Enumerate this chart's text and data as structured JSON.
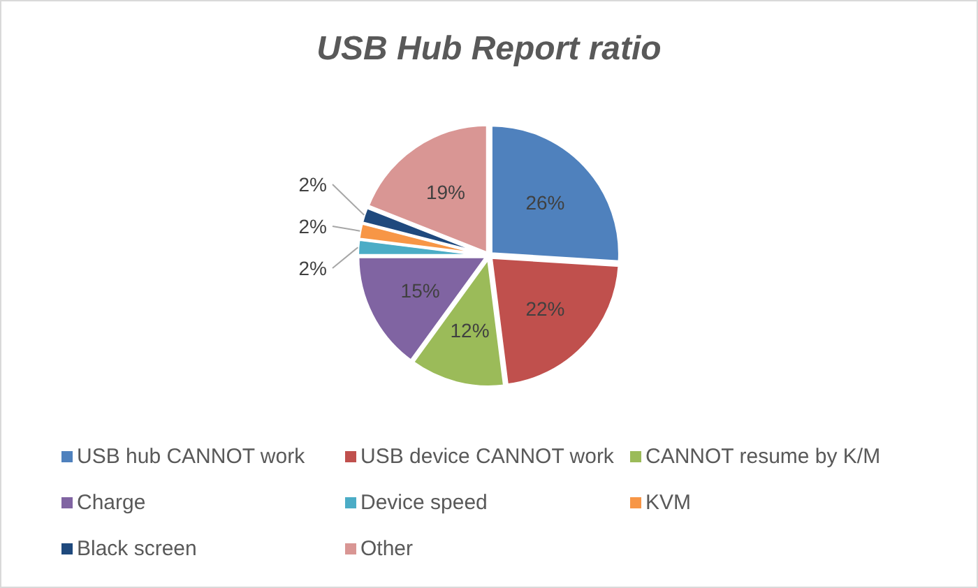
{
  "chart_data": {
    "type": "pie",
    "title": "USB Hub Report ratio",
    "categories": [
      "USB hub CANNOT work",
      "USB device CANNOT work",
      "CANNOT resume by K/M",
      "Charge",
      "Device speed",
      "KVM",
      "Black screen",
      "Other"
    ],
    "values": [
      26,
      22,
      12,
      15,
      2,
      2,
      2,
      19
    ],
    "colors": [
      "#4f81bd",
      "#c0504d",
      "#9bbb59",
      "#8064a2",
      "#4bacc6",
      "#f79646",
      "#1f497d",
      "#d99694"
    ],
    "value_labels": [
      "26%",
      "22%",
      "12%",
      "15%",
      "2%",
      "2%",
      "2%",
      "19%"
    ],
    "legend": "bottom"
  }
}
